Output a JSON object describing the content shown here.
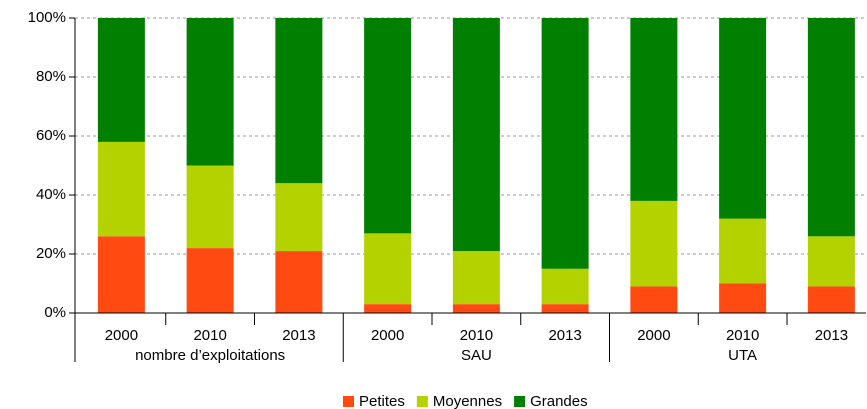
{
  "chart_data": {
    "type": "stacked_bar",
    "categories": [
      "2000",
      "2010",
      "2013",
      "2000",
      "2010",
      "2013",
      "2000",
      "2010",
      "2013"
    ],
    "groups": [
      "nombre d’exploitations",
      "SAU",
      "UTA"
    ],
    "series": [
      {
        "name": "Petites",
        "color": "#ff4a12",
        "values": [
          26,
          22,
          21,
          3,
          3,
          3,
          9,
          10,
          9
        ]
      },
      {
        "name": "Moyennes",
        "color": "#b3d200",
        "values": [
          32,
          28,
          23,
          24,
          18,
          12,
          29,
          22,
          17
        ]
      },
      {
        "name": "Grandes",
        "color": "#007f00",
        "values": [
          42,
          50,
          56,
          73,
          79,
          85,
          62,
          68,
          74
        ]
      }
    ],
    "ylim": [
      0,
      100
    ],
    "yticks": [
      {
        "value": 0,
        "label": "0%"
      },
      {
        "value": 20,
        "label": "20%"
      },
      {
        "value": 40,
        "label": "40%"
      },
      {
        "value": 60,
        "label": "60%"
      },
      {
        "value": 80,
        "label": "80%"
      },
      {
        "value": 100,
        "label": "100%"
      }
    ],
    "grid": true,
    "legend": "bottom"
  }
}
